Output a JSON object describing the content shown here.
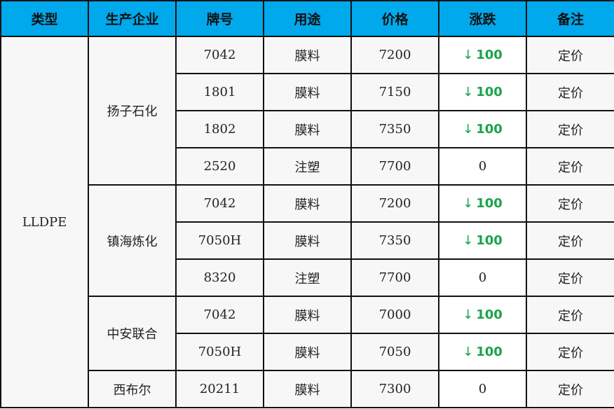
{
  "headers": [
    "类型",
    "生产企业",
    "牌号",
    "用途",
    "价格",
    "涨跌",
    "备注"
  ],
  "type": "LLDPE",
  "companies": [
    "扬子石化",
    "镇海炼化",
    "中安联合",
    "西布尔"
  ],
  "rows": [
    {
      "grade": "7042",
      "use": "膜料",
      "price": "7200",
      "change": "100",
      "dir": "down",
      "note": "定价"
    },
    {
      "grade": "1801",
      "use": "膜料",
      "price": "7150",
      "change": "100",
      "dir": "down",
      "note": "定价"
    },
    {
      "grade": "1802",
      "use": "膜料",
      "price": "7350",
      "change": "100",
      "dir": "down",
      "note": "定价"
    },
    {
      "grade": "2520",
      "use": "注塑",
      "price": "7700",
      "change": "0",
      "dir": "flat",
      "note": "定价"
    },
    {
      "grade": "7042",
      "use": "膜料",
      "price": "7200",
      "change": "100",
      "dir": "down",
      "note": "定价"
    },
    {
      "grade": "7050H",
      "use": "膜料",
      "price": "7350",
      "change": "100",
      "dir": "down",
      "note": "定价"
    },
    {
      "grade": "8320",
      "use": "注塑",
      "price": "7700",
      "change": "0",
      "dir": "flat",
      "note": "定价"
    },
    {
      "grade": "7042",
      "use": "膜料",
      "price": "7000",
      "change": "100",
      "dir": "down",
      "note": "定价"
    },
    {
      "grade": "7050H",
      "use": "膜料",
      "price": "7050",
      "change": "100",
      "dir": "down",
      "note": "定价"
    },
    {
      "grade": "20211",
      "use": "膜料",
      "price": "7300",
      "change": "0",
      "dir": "flat",
      "note": "定价"
    }
  ],
  "colors": {
    "header": "#00a8ec",
    "down": "#1aa34a"
  },
  "icons": {
    "down": "down-arrow-icon"
  }
}
